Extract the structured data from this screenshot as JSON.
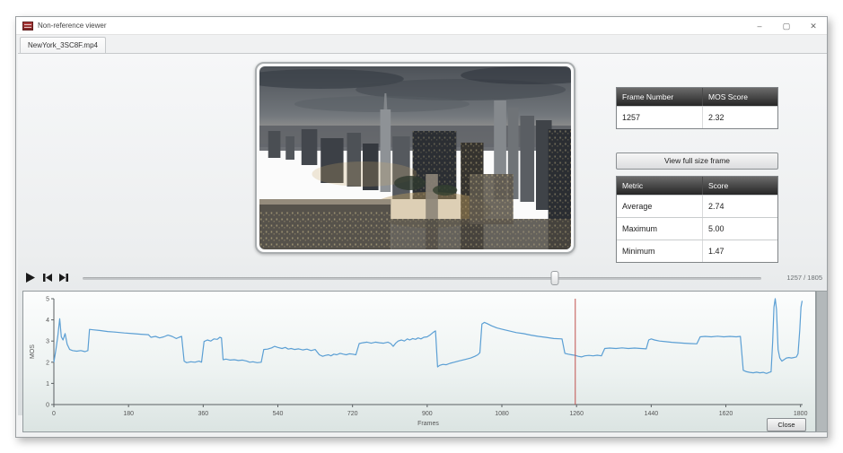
{
  "window": {
    "title": "Non-reference viewer",
    "controls": {
      "minimize": "–",
      "maximize": "▢",
      "close": "✕"
    }
  },
  "tab": {
    "label": "NewYork_3SC8F.mp4"
  },
  "frame_info": {
    "headers": [
      "Frame Number",
      "MOS Score"
    ],
    "row": {
      "frame_number": "1257",
      "mos_score": "2.32"
    }
  },
  "buttons": {
    "view_full_frame": "View full size frame",
    "close": "Close"
  },
  "metrics": {
    "headers": [
      "Metric",
      "Score"
    ],
    "rows": [
      {
        "label": "Average",
        "value": "2.74"
      },
      {
        "label": "Maximum",
        "value": "5.00"
      },
      {
        "label": "Minimum",
        "value": "1.47"
      }
    ]
  },
  "playback": {
    "counter": "1257 / 1805",
    "current_frame": 1257,
    "total_frames": 1805
  },
  "chart_data": {
    "type": "line",
    "title": "",
    "xlabel": "Frames",
    "ylabel": "MOS",
    "xlim": [
      0,
      1805
    ],
    "ylim": [
      0,
      5
    ],
    "xticks": [
      0,
      180,
      360,
      540,
      720,
      900,
      1080,
      1260,
      1440,
      1620,
      1800
    ],
    "yticks": [
      0,
      1,
      2,
      3,
      4,
      5
    ],
    "grid": false,
    "legend": "none",
    "line_color": "#5b9fd4",
    "cursor_color": "#c0504d",
    "cursor_x": 1257,
    "x": [
      0,
      5,
      10,
      14,
      18,
      22,
      27,
      32,
      38,
      45,
      55,
      65,
      75,
      82,
      86,
      95,
      110,
      130,
      150,
      170,
      190,
      210,
      228,
      234,
      245,
      255,
      265,
      275,
      285,
      295,
      302,
      308,
      314,
      320,
      330,
      340,
      350,
      356,
      362,
      370,
      378,
      386,
      394,
      400,
      404,
      408,
      415,
      425,
      435,
      445,
      455,
      465,
      472,
      480,
      490,
      500,
      506,
      515,
      525,
      532,
      540,
      550,
      558,
      565,
      572,
      580,
      590,
      600,
      610,
      620,
      630,
      640,
      648,
      655,
      662,
      668,
      675,
      682,
      690,
      698,
      705,
      712,
      720,
      728,
      736,
      745,
      755,
      765,
      775,
      785,
      795,
      805,
      812,
      818,
      824,
      830,
      838,
      845,
      852,
      858,
      865,
      872,
      878,
      885,
      892,
      900,
      908,
      915,
      920,
      925,
      930,
      938,
      946,
      955,
      965,
      975,
      985,
      995,
      1005,
      1015,
      1022,
      1027,
      1032,
      1038,
      1045,
      1055,
      1068,
      1082,
      1098,
      1115,
      1132,
      1150,
      1168,
      1185,
      1205,
      1225,
      1232,
      1240,
      1248,
      1257,
      1264,
      1272,
      1280,
      1290,
      1300,
      1310,
      1320,
      1328,
      1340,
      1355,
      1370,
      1385,
      1400,
      1415,
      1428,
      1434,
      1440,
      1448,
      1460,
      1475,
      1490,
      1505,
      1520,
      1535,
      1550,
      1558,
      1570,
      1585,
      1600,
      1615,
      1630,
      1645,
      1655,
      1662,
      1670,
      1678,
      1686,
      1694,
      1702,
      1710,
      1718,
      1725,
      1729,
      1733,
      1736,
      1739,
      1742,
      1746,
      1750,
      1755,
      1760,
      1766,
      1772,
      1778,
      1784,
      1790,
      1794,
      1798,
      1801,
      1804
    ],
    "y": [
      2.0,
      2.6,
      3.3,
      4.05,
      3.2,
      3.05,
      3.35,
      2.85,
      2.6,
      2.55,
      2.52,
      2.55,
      2.5,
      2.55,
      3.55,
      3.53,
      3.5,
      3.45,
      3.42,
      3.38,
      3.35,
      3.32,
      3.3,
      3.18,
      3.22,
      3.15,
      3.2,
      3.28,
      3.22,
      3.12,
      3.18,
      3.22,
      2.05,
      1.98,
      2.02,
      2.0,
      2.05,
      2.0,
      2.98,
      3.05,
      3.0,
      3.1,
      3.08,
      3.18,
      3.15,
      2.12,
      2.15,
      2.1,
      2.12,
      2.08,
      2.1,
      2.05,
      2.0,
      2.02,
      1.98,
      2.0,
      2.6,
      2.62,
      2.68,
      2.75,
      2.7,
      2.65,
      2.7,
      2.62,
      2.65,
      2.6,
      2.63,
      2.58,
      2.62,
      2.55,
      2.6,
      2.35,
      2.28,
      2.32,
      2.35,
      2.3,
      2.38,
      2.35,
      2.42,
      2.38,
      2.35,
      2.4,
      2.38,
      2.35,
      2.88,
      2.92,
      2.95,
      2.9,
      2.95,
      2.92,
      2.9,
      2.95,
      2.88,
      2.75,
      2.9,
      3.0,
      3.05,
      3.0,
      3.1,
      3.05,
      3.12,
      3.08,
      3.15,
      3.1,
      3.18,
      3.2,
      3.3,
      3.42,
      3.48,
      1.78,
      1.85,
      1.9,
      1.88,
      1.95,
      2.0,
      2.05,
      2.1,
      2.15,
      2.2,
      2.28,
      2.35,
      2.45,
      3.8,
      3.88,
      3.82,
      3.72,
      3.62,
      3.55,
      3.48,
      3.4,
      3.35,
      3.28,
      3.22,
      3.18,
      3.12,
      3.1,
      2.42,
      2.38,
      2.35,
      2.32,
      2.28,
      2.25,
      2.3,
      2.32,
      2.3,
      2.33,
      2.3,
      2.65,
      2.67,
      2.65,
      2.68,
      2.65,
      2.67,
      2.65,
      2.63,
      3.05,
      3.1,
      3.05,
      3.0,
      2.97,
      2.94,
      2.92,
      2.9,
      2.88,
      2.87,
      3.2,
      3.22,
      3.2,
      3.23,
      3.2,
      3.22,
      3.2,
      3.22,
      1.62,
      1.55,
      1.52,
      1.5,
      1.53,
      1.5,
      1.52,
      1.47,
      1.52,
      1.55,
      3.0,
      4.6,
      5.0,
      4.5,
      2.6,
      2.2,
      2.05,
      2.12,
      2.2,
      2.22,
      2.2,
      2.22,
      2.25,
      2.4,
      3.5,
      4.6,
      4.9
    ]
  }
}
